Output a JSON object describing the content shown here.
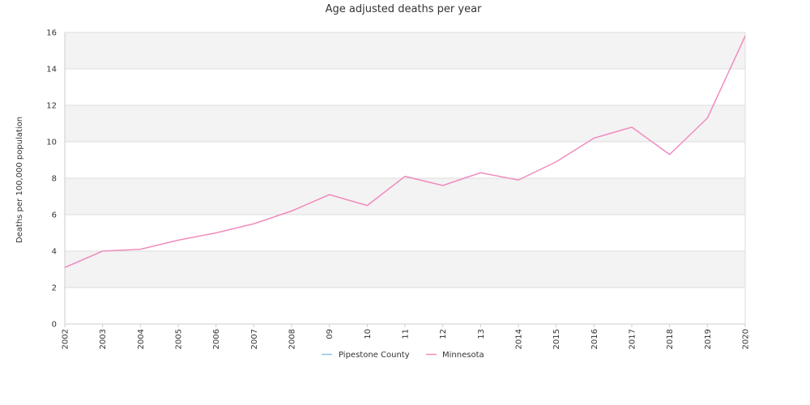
{
  "chart_data": {
    "type": "line",
    "title": "Age adjusted deaths per year",
    "xlabel": "",
    "ylabel": "Deaths per 100,000 population",
    "ylim": [
      0,
      16
    ],
    "yticks": [
      0,
      2,
      4,
      6,
      8,
      10,
      12,
      14,
      16
    ],
    "categories": [
      "2002",
      "2003",
      "2004",
      "2005",
      "2006",
      "2007",
      "2008",
      "09",
      "10",
      "11",
      "12",
      "13",
      "2014",
      "2015",
      "2016",
      "2017",
      "2018",
      "2019",
      "2020"
    ],
    "series": [
      {
        "name": "Pipestone County",
        "color": "#8fc3e0",
        "values": [
          null,
          null,
          null,
          null,
          null,
          null,
          null,
          null,
          null,
          null,
          null,
          null,
          null,
          null,
          null,
          null,
          null,
          null,
          null
        ]
      },
      {
        "name": "Minnesota",
        "color": "#f08cbf",
        "values": [
          3.1,
          4.0,
          4.1,
          4.6,
          5.0,
          5.5,
          6.2,
          7.1,
          6.5,
          8.1,
          7.6,
          8.3,
          7.9,
          8.9,
          10.2,
          10.8,
          9.3,
          11.3,
          15.8
        ]
      }
    ],
    "grid": true,
    "legend": "bottom-center"
  }
}
